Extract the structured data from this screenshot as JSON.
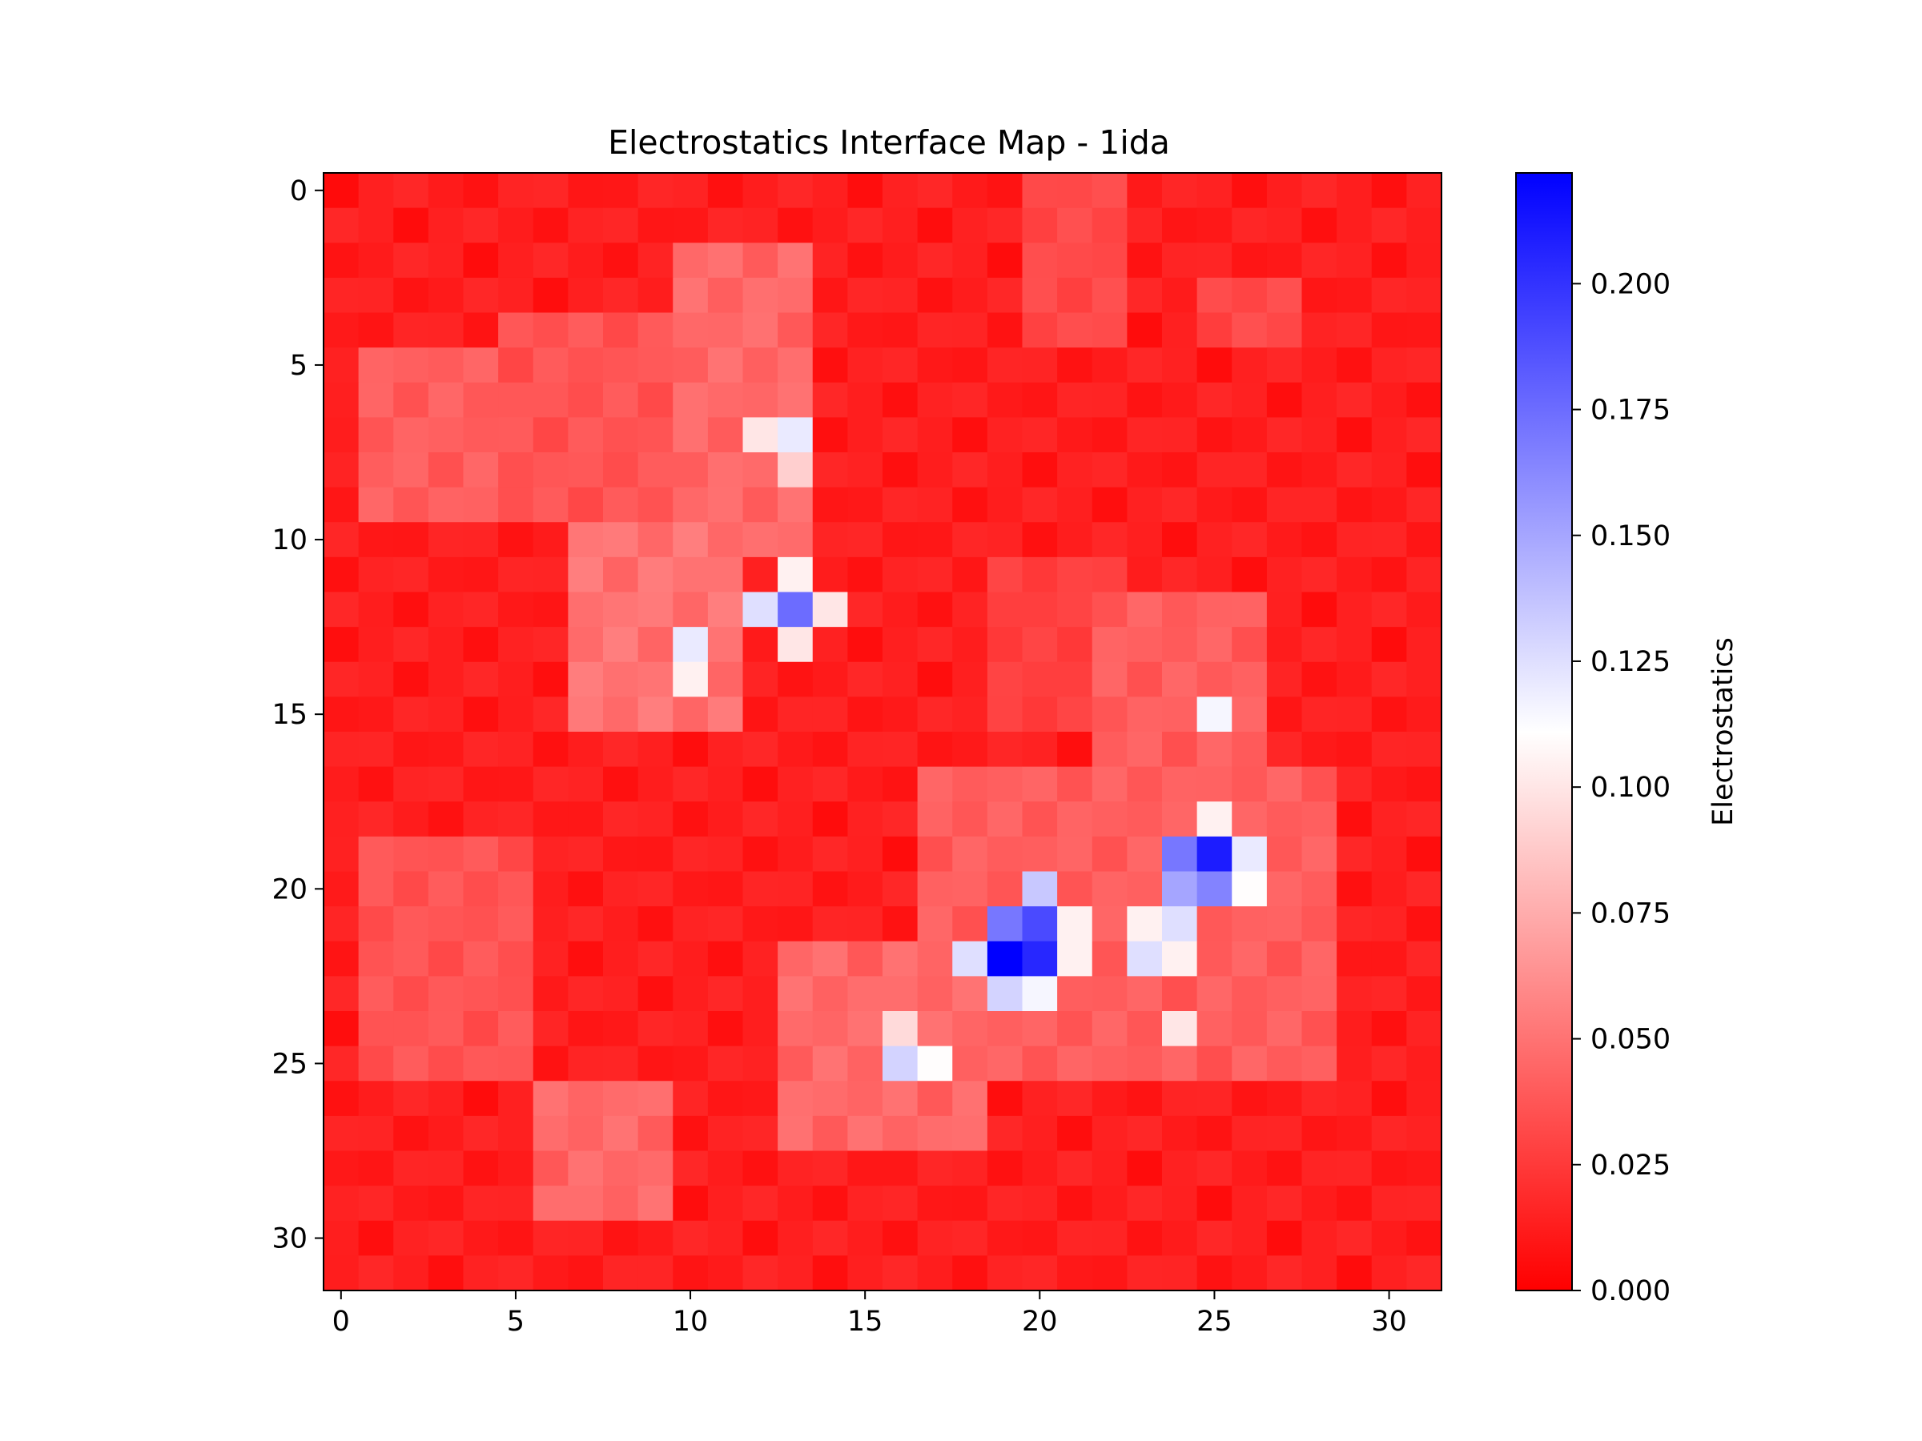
{
  "chart_data": {
    "type": "heatmap",
    "title": "Electrostatics Interface Map - 1ida",
    "xlabel": "",
    "ylabel": "",
    "colorbar_label": "Electrostatics",
    "colormap": "bwr_r",
    "colormap_colors": {
      "low": "#ff0000",
      "mid": "#ffffff",
      "high": "#0000ff"
    },
    "grid": false,
    "rows": 32,
    "cols": 32,
    "x_ticks": [
      0,
      5,
      10,
      15,
      20,
      25,
      30
    ],
    "y_ticks": [
      0,
      5,
      10,
      15,
      20,
      25,
      30
    ],
    "y_axis_inverted": true,
    "vmin": 0.0,
    "vmax": 0.222,
    "colorbar_ticks": [
      "0.000",
      "0.025",
      "0.050",
      "0.075",
      "0.100",
      "0.125",
      "0.150",
      "0.175",
      "0.200"
    ],
    "hotspots": [
      {
        "row": 7,
        "col": 12,
        "value": 0.1
      },
      {
        "row": 7,
        "col": 13,
        "value": 0.12
      },
      {
        "row": 8,
        "col": 13,
        "value": 0.09
      },
      {
        "row": 11,
        "col": 13,
        "value": 0.105
      },
      {
        "row": 12,
        "col": 12,
        "value": 0.125
      },
      {
        "row": 12,
        "col": 13,
        "value": 0.175
      },
      {
        "row": 12,
        "col": 14,
        "value": 0.1
      },
      {
        "row": 13,
        "col": 10,
        "value": 0.12
      },
      {
        "row": 13,
        "col": 13,
        "value": 0.1
      },
      {
        "row": 14,
        "col": 10,
        "value": 0.105
      },
      {
        "row": 15,
        "col": 25,
        "value": 0.115
      },
      {
        "row": 18,
        "col": 25,
        "value": 0.105
      },
      {
        "row": 19,
        "col": 24,
        "value": 0.17
      },
      {
        "row": 19,
        "col": 25,
        "value": 0.21
      },
      {
        "row": 19,
        "col": 26,
        "value": 0.12
      },
      {
        "row": 20,
        "col": 20,
        "value": 0.135
      },
      {
        "row": 20,
        "col": 24,
        "value": 0.15
      },
      {
        "row": 20,
        "col": 25,
        "value": 0.165
      },
      {
        "row": 20,
        "col": 26,
        "value": 0.11
      },
      {
        "row": 21,
        "col": 19,
        "value": 0.17
      },
      {
        "row": 21,
        "col": 20,
        "value": 0.19
      },
      {
        "row": 21,
        "col": 21,
        "value": 0.105
      },
      {
        "row": 21,
        "col": 23,
        "value": 0.105
      },
      {
        "row": 21,
        "col": 24,
        "value": 0.125
      },
      {
        "row": 22,
        "col": 18,
        "value": 0.125
      },
      {
        "row": 22,
        "col": 19,
        "value": 0.222
      },
      {
        "row": 22,
        "col": 20,
        "value": 0.205
      },
      {
        "row": 22,
        "col": 21,
        "value": 0.105
      },
      {
        "row": 22,
        "col": 23,
        "value": 0.125
      },
      {
        "row": 22,
        "col": 24,
        "value": 0.105
      },
      {
        "row": 23,
        "col": 19,
        "value": 0.13
      },
      {
        "row": 23,
        "col": 20,
        "value": 0.115
      },
      {
        "row": 24,
        "col": 16,
        "value": 0.095
      },
      {
        "row": 24,
        "col": 24,
        "value": 0.1
      },
      {
        "row": 25,
        "col": 16,
        "value": 0.13
      },
      {
        "row": 25,
        "col": 17,
        "value": 0.11
      }
    ],
    "regions": [
      {
        "r0": 2,
        "r1": 10,
        "c0": 10,
        "c1": 13,
        "value": 0.05
      },
      {
        "r0": 4,
        "r1": 9,
        "c0": 5,
        "c1": 10,
        "value": 0.04
      },
      {
        "r0": 5,
        "r1": 9,
        "c0": 1,
        "c1": 4,
        "value": 0.045
      },
      {
        "r0": 10,
        "r1": 15,
        "c0": 7,
        "c1": 11,
        "value": 0.055
      },
      {
        "r0": 17,
        "r1": 25,
        "c0": 17,
        "c1": 28,
        "value": 0.045
      },
      {
        "r0": 12,
        "r1": 17,
        "c0": 22,
        "c1": 26,
        "value": 0.045
      },
      {
        "r0": 11,
        "r1": 15,
        "c0": 19,
        "c1": 22,
        "value": 0.03
      },
      {
        "r0": 19,
        "r1": 25,
        "c0": 1,
        "c1": 5,
        "value": 0.04
      },
      {
        "r0": 22,
        "r1": 27,
        "c0": 13,
        "c1": 18,
        "value": 0.05
      },
      {
        "r0": 26,
        "r1": 29,
        "c0": 6,
        "c1": 9,
        "value": 0.05
      },
      {
        "r0": 0,
        "r1": 4,
        "c0": 20,
        "c1": 22,
        "value": 0.035
      },
      {
        "r0": 3,
        "r1": 4,
        "c0": 25,
        "c1": 27,
        "value": 0.035
      }
    ]
  }
}
